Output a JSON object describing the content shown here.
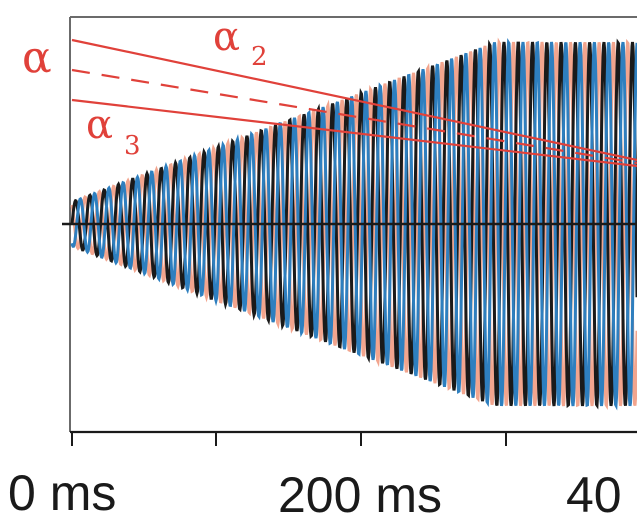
{
  "figure": {
    "labels": {
      "alpha": "α",
      "alpha2": "α",
      "alpha2_sub": "2",
      "alpha3": "α",
      "alpha3_sub": "3"
    },
    "x_ticks": [
      "0 ms",
      "200 ms",
      "40"
    ],
    "colors": {
      "label_red": "#e0413a",
      "line_red": "#e0413a",
      "wave_black": "#1a1a1a",
      "wave_salmon": "#f2a58e",
      "wave_blue": "#2e7fbf",
      "frame": "#6b6b6b",
      "axis": "#1a1a1a"
    }
  }
}
